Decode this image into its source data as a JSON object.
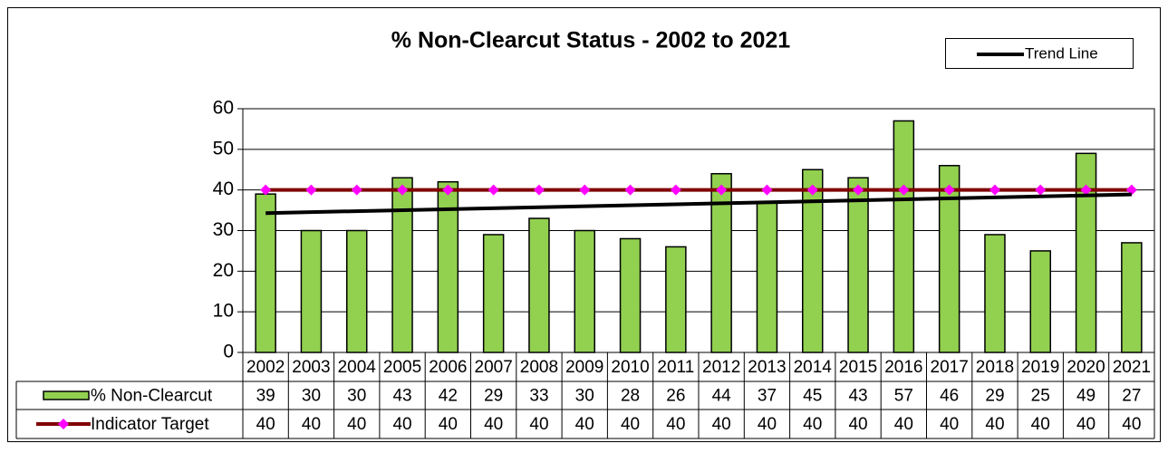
{
  "chart_data": {
    "type": "bar",
    "title": "% Non-Clearcut Status - 2002 to 2021",
    "categories": [
      "2002",
      "2003",
      "2004",
      "2005",
      "2006",
      "2007",
      "2008",
      "2009",
      "2010",
      "2011",
      "2012",
      "2013",
      "2014",
      "2015",
      "2016",
      "2017",
      "2018",
      "2019",
      "2020",
      "2021"
    ],
    "series": [
      {
        "name": "% Non-Clearcut",
        "color": "#92d050",
        "values": [
          39,
          30,
          30,
          43,
          42,
          29,
          33,
          30,
          28,
          26,
          44,
          37,
          45,
          43,
          57,
          46,
          29,
          25,
          49,
          27
        ]
      },
      {
        "name": "Indicator Target",
        "color": "#800000",
        "marker_color": "#ff00ff",
        "values": [
          40,
          40,
          40,
          40,
          40,
          40,
          40,
          40,
          40,
          40,
          40,
          40,
          40,
          40,
          40,
          40,
          40,
          40,
          40,
          40
        ]
      }
    ],
    "trend_line": {
      "name": "Trend Line",
      "color": "#000000",
      "start": 34.3,
      "end": 38.9
    },
    "ylim": [
      0,
      60
    ],
    "yticks": [
      0,
      10,
      20,
      30,
      40,
      50,
      60
    ],
    "grid": true
  }
}
